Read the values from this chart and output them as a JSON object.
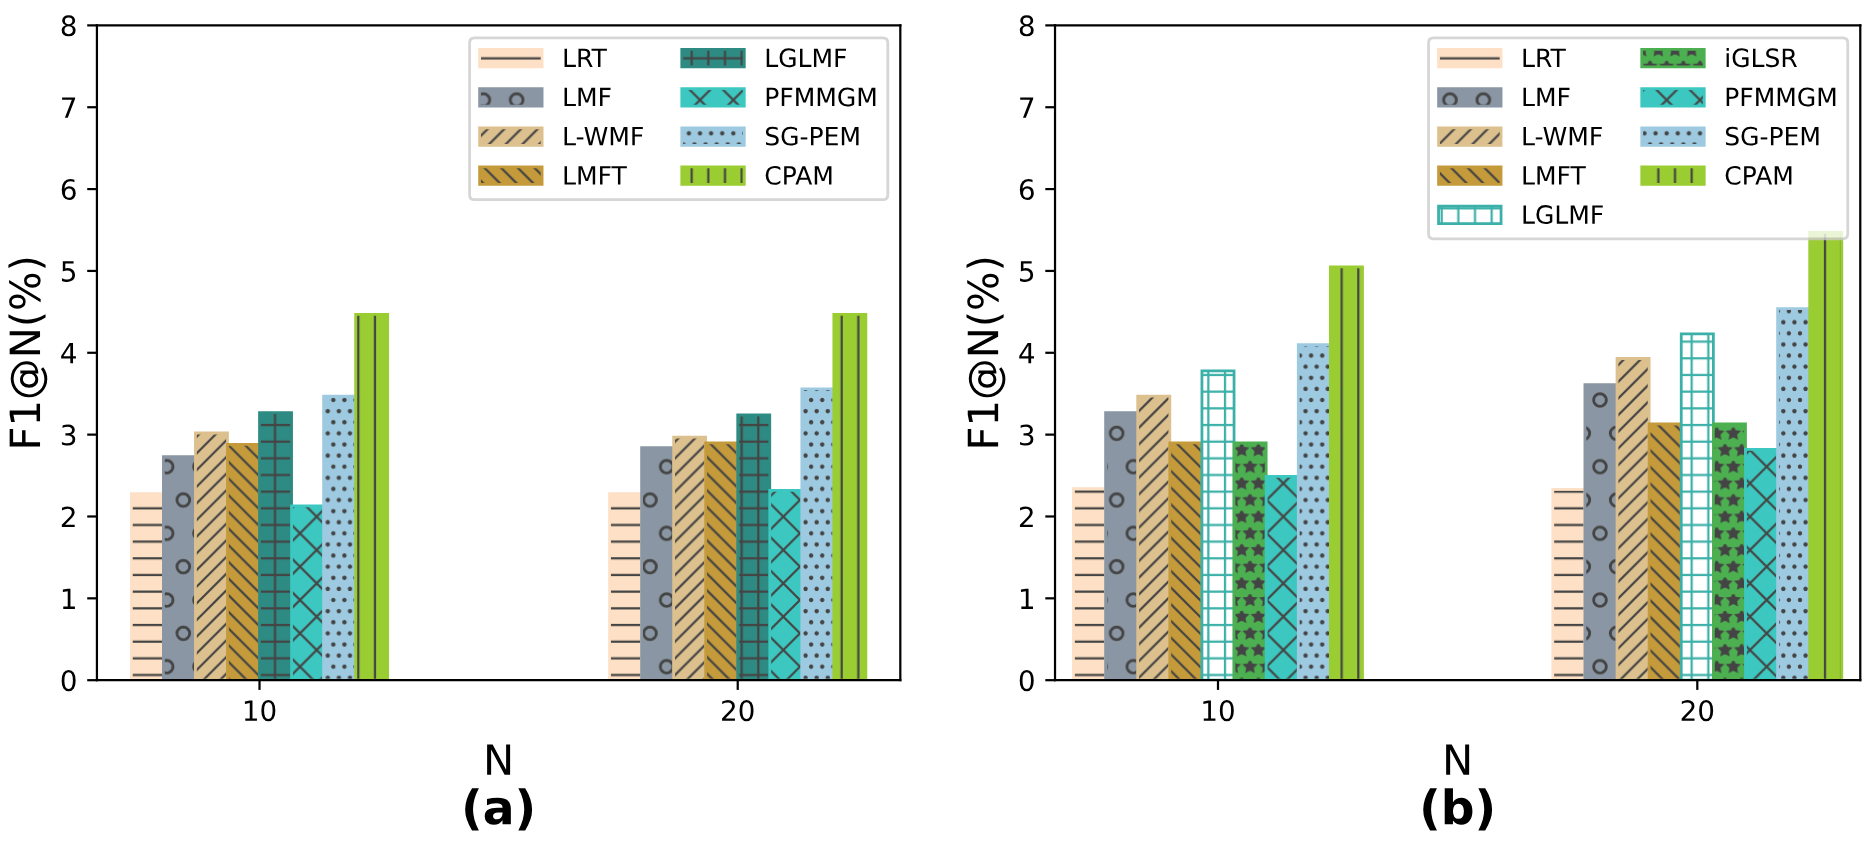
{
  "chart_data": [
    {
      "type": "bar",
      "title": "(a)",
      "xlabel": "N",
      "ylabel": "F1@N(%)",
      "categories": [
        "10",
        "20"
      ],
      "ylim": [
        0,
        8
      ],
      "yticks": [
        0,
        1,
        2,
        3,
        4,
        5,
        6,
        7,
        8
      ],
      "grid": false,
      "legend": "top right",
      "series": [
        {
          "name": "LRT",
          "color": "#fde0c5",
          "values": [
            2.28,
            2.28
          ]
        },
        {
          "name": "LMF",
          "color": "#8a96a3",
          "values": [
            2.73,
            2.84
          ]
        },
        {
          "name": "L-WMF",
          "color": "#dcc08e",
          "values": [
            3.02,
            2.97
          ]
        },
        {
          "name": "LMFT",
          "color": "#c49a3a",
          "values": [
            2.88,
            2.9
          ]
        },
        {
          "name": "LGLMF",
          "color": "#2e8b83",
          "values": [
            3.27,
            3.24
          ]
        },
        {
          "name": "PFMMGM",
          "color": "#3cc8c0",
          "values": [
            2.13,
            2.32
          ]
        },
        {
          "name": "SG-PEM",
          "color": "#9ecae1",
          "values": [
            3.47,
            3.56
          ]
        },
        {
          "name": "CPAM",
          "color": "#9acd32",
          "values": [
            4.47,
            4.47
          ]
        }
      ]
    },
    {
      "type": "bar",
      "title": "(b)",
      "xlabel": "N",
      "ylabel": "F1@N(%)",
      "categories": [
        "10",
        "20"
      ],
      "ylim": [
        0,
        8
      ],
      "yticks": [
        0,
        1,
        2,
        3,
        4,
        5,
        6,
        7,
        8
      ],
      "grid": false,
      "legend": "top right",
      "series": [
        {
          "name": "LRT",
          "color": "#fde0c5",
          "values": [
            2.34,
            2.33
          ]
        },
        {
          "name": "LMF",
          "color": "#8a96a3",
          "values": [
            3.27,
            3.61
          ]
        },
        {
          "name": "L-WMF",
          "color": "#dcc08e",
          "values": [
            3.47,
            3.93
          ]
        },
        {
          "name": "LMFT",
          "color": "#c49a3a",
          "values": [
            2.9,
            3.13
          ]
        },
        {
          "name": "LGLMF",
          "color": "#3bb0a8",
          "values": [
            3.78,
            4.23
          ]
        },
        {
          "name": "iGLSR",
          "color": "#4caf50",
          "values": [
            2.9,
            3.13
          ]
        },
        {
          "name": "PFMMGM",
          "color": "#3cc8c0",
          "values": [
            2.49,
            2.82
          ]
        },
        {
          "name": "SG-PEM",
          "color": "#9ecae1",
          "values": [
            4.1,
            4.54
          ]
        },
        {
          "name": "CPAM",
          "color": "#9acd32",
          "values": [
            5.05,
            5.47
          ]
        }
      ]
    }
  ]
}
